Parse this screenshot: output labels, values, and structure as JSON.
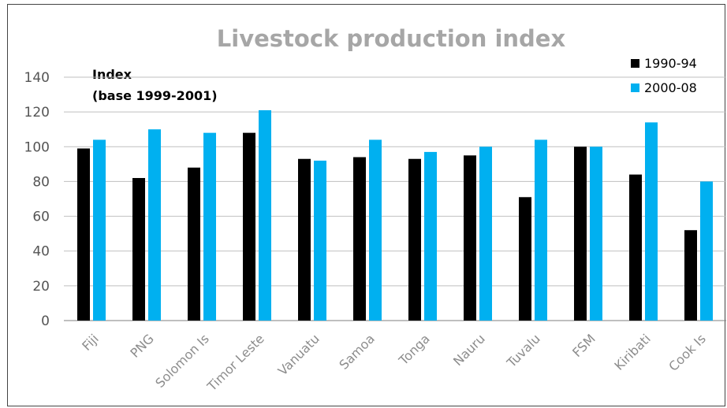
{
  "chart_data": {
    "type": "bar",
    "title": "Livestock production index",
    "ylabel_lines": [
      "Index",
      "(base 1999-2001)"
    ],
    "categories": [
      "Fiji",
      "PNG",
      "Solomon Is",
      "Timor Leste",
      "Vanuatu",
      "Samoa",
      "Tonga",
      "Nauru",
      "Tuvalu",
      "FSM",
      "Kiribati",
      "Cook Is"
    ],
    "series": [
      {
        "name": "1990-94",
        "color": "#000000",
        "values": [
          99,
          82,
          88,
          108,
          93,
          94,
          93,
          95,
          71,
          100,
          84,
          52
        ]
      },
      {
        "name": "2000-08",
        "color": "#00b0f0",
        "values": [
          104,
          110,
          108,
          121,
          92,
          104,
          97,
          100,
          104,
          100,
          114,
          80
        ]
      }
    ],
    "ylim": [
      0,
      140
    ],
    "yticks": [
      0,
      20,
      40,
      60,
      80,
      100,
      120,
      140
    ],
    "grid": true,
    "legend_position": "top-right"
  }
}
